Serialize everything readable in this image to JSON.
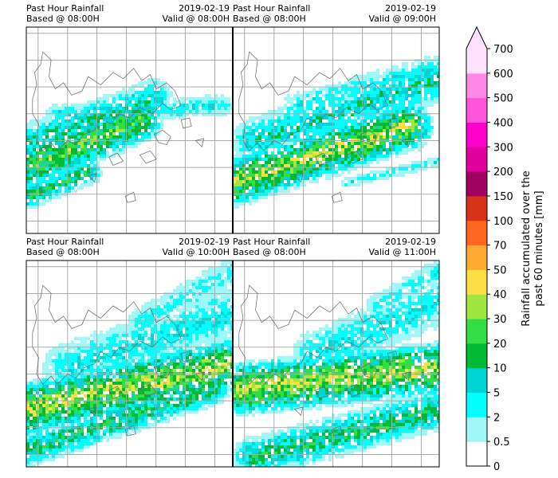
{
  "chart_data": {
    "type": "heatmap",
    "panels": [
      {
        "title_left": "Past Hour Rainfall",
        "subtitle_left": "Based @ 08:00H",
        "date": "2019-02-19",
        "valid": "Valid @ 08:00H",
        "bands": [
          {
            "x0": 0.0,
            "y0": 0.68,
            "x1": 0.55,
            "y1": 0.45,
            "width": 0.24,
            "intensity": 0.7
          },
          {
            "x0": 0.02,
            "y0": 0.55,
            "x1": 0.62,
            "y1": 0.34,
            "width": 0.2,
            "intensity": 0.45
          },
          {
            "x0": 0.15,
            "y0": 0.42,
            "x1": 0.95,
            "y1": 0.38,
            "width": 0.12,
            "intensity": 0.32
          },
          {
            "x0": 0.0,
            "y0": 0.82,
            "x1": 0.3,
            "y1": 0.7,
            "width": 0.14,
            "intensity": 0.55
          }
        ]
      },
      {
        "title_left": "Past Hour Rainfall",
        "subtitle_left": "Based @ 08:00H",
        "date": "2019-02-19",
        "valid": "Valid @ 09:00H",
        "bands": [
          {
            "x0": 0.0,
            "y0": 0.75,
            "x1": 0.85,
            "y1": 0.48,
            "width": 0.26,
            "intensity": 0.8
          },
          {
            "x0": 0.1,
            "y0": 0.55,
            "x1": 1.0,
            "y1": 0.25,
            "width": 0.24,
            "intensity": 0.45
          },
          {
            "x0": 0.3,
            "y0": 0.38,
            "x1": 0.95,
            "y1": 0.2,
            "width": 0.14,
            "intensity": 0.3
          },
          {
            "x0": 0.55,
            "y0": 0.75,
            "x1": 1.0,
            "y1": 0.65,
            "width": 0.06,
            "intensity": 0.3
          }
        ]
      },
      {
        "title_left": "Past Hour Rainfall",
        "subtitle_left": "Based @ 08:00H",
        "date": "2019-02-19",
        "valid": "Valid @ 10:00H",
        "bands": [
          {
            "x0": 0.0,
            "y0": 0.72,
            "x1": 1.0,
            "y1": 0.5,
            "width": 0.28,
            "intensity": 0.85
          },
          {
            "x0": 0.0,
            "y0": 0.92,
            "x1": 0.9,
            "y1": 0.62,
            "width": 0.18,
            "intensity": 0.55
          },
          {
            "x0": 0.2,
            "y0": 0.52,
            "x1": 1.0,
            "y1": 0.25,
            "width": 0.28,
            "intensity": 0.35
          },
          {
            "x0": 0.55,
            "y0": 0.3,
            "x1": 1.0,
            "y1": 0.05,
            "width": 0.16,
            "intensity": 0.28
          }
        ]
      },
      {
        "title_left": "Past Hour Rainfall",
        "subtitle_left": "Based @ 08:00H",
        "date": "2019-02-19",
        "valid": "Valid @ 11:00H",
        "bands": [
          {
            "x0": 0.05,
            "y0": 0.62,
            "x1": 1.0,
            "y1": 0.52,
            "width": 0.28,
            "intensity": 0.85
          },
          {
            "x0": 0.1,
            "y0": 0.95,
            "x1": 1.0,
            "y1": 0.72,
            "width": 0.22,
            "intensity": 0.55
          },
          {
            "x0": 0.4,
            "y0": 0.45,
            "x1": 1.0,
            "y1": 0.2,
            "width": 0.26,
            "intensity": 0.35
          },
          {
            "x0": 0.7,
            "y0": 0.22,
            "x1": 1.0,
            "y1": 0.05,
            "width": 0.14,
            "intensity": 0.28
          }
        ]
      }
    ],
    "colorbar": {
      "label_line1": "Rainfall accumulated over the",
      "label_line2": "past 60 minutes [mm]",
      "levels": [
        "0",
        "0.5",
        "2",
        "5",
        "10",
        "20",
        "30",
        "40",
        "50",
        "70",
        "100",
        "150",
        "200",
        "300",
        "400",
        "500",
        "600",
        "700"
      ],
      "colors": [
        "#ffffff",
        "#a0f7f7",
        "#00ffff",
        "#00d5d5",
        "#00bb33",
        "#33dd44",
        "#a0e640",
        "#ffdd44",
        "#ffaa33",
        "#ff6622",
        "#d83318",
        "#a00060",
        "#e000a0",
        "#ff00cc",
        "#ff55dd",
        "#ff88e6",
        "#ffe0ff"
      ],
      "extend": "max"
    },
    "grid": true,
    "base_color": "#a0f7f7",
    "coast_color": "#666666",
    "grid_color": "#aaaaaa"
  }
}
